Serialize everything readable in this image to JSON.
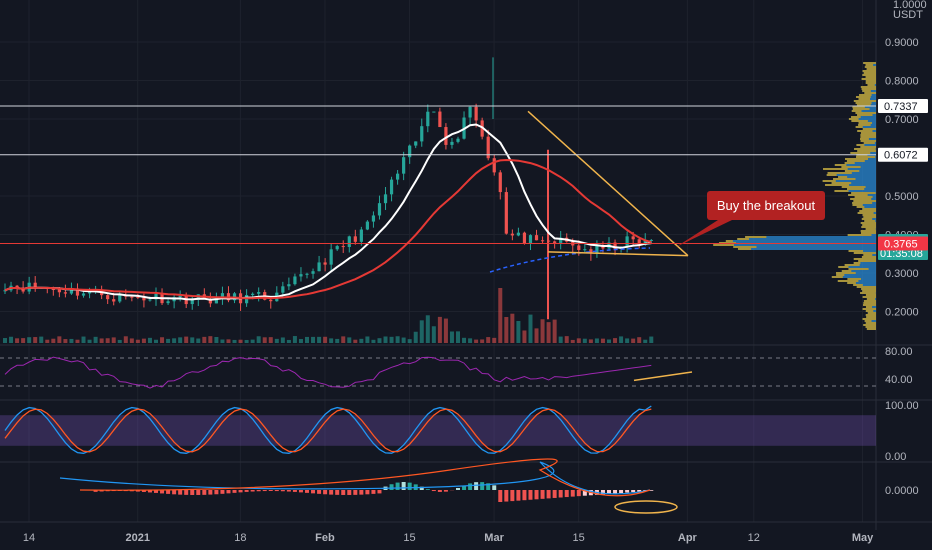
{
  "chart_data": {
    "type": "candlestick",
    "quote": "USDT",
    "price_scale": {
      "ticks": [
        "0.9000",
        "0.8000",
        "0.7000",
        "0.5000",
        "0.4000",
        "0.3000",
        "0.2000"
      ],
      "tick_values": [
        0.9,
        0.8,
        0.7,
        0.5,
        0.4,
        0.3,
        0.2
      ],
      "top_cutoff_label": "1.0000"
    },
    "time_scale": {
      "labels": [
        "14",
        "2021",
        "18",
        "Feb",
        "15",
        "Mar",
        "15",
        "Apr",
        "12",
        "May"
      ],
      "day_offsets": [
        0,
        18,
        35,
        49,
        63,
        77,
        91,
        109,
        120,
        138
      ]
    },
    "price_badges": [
      {
        "label": "0.7337",
        "value": 0.7337,
        "style": "white"
      },
      {
        "label": "0.6072",
        "value": 0.6072,
        "style": "white"
      },
      {
        "label": "0.3857",
        "value": 0.3857,
        "style": "green",
        "countdown": "01:35:08"
      },
      {
        "label": "0.3765",
        "value": 0.3765,
        "style": "red"
      }
    ],
    "horizontal_levels": [
      {
        "value": 0.7337,
        "color": "#d1d4dc"
      },
      {
        "value": 0.6072,
        "color": "#d1d4dc"
      },
      {
        "value": 0.3765,
        "color": "#e53935"
      }
    ],
    "annotation": {
      "text": "Buy the breakout",
      "color": "#b22222"
    },
    "rsi": {
      "ticks": [
        "80.00",
        "40.00"
      ],
      "tick_values": [
        80,
        40
      ],
      "upper": 70,
      "lower": 30
    },
    "stoch_rsi": {
      "ticks": [
        "100.00",
        "0.00"
      ],
      "tick_values": [
        100,
        0
      ],
      "upper": 80,
      "lower": 20
    },
    "macd": {
      "ticks": [
        "0.0000"
      ],
      "tick_values": [
        0
      ]
    },
    "colors": {
      "up": "#26a69a",
      "down": "#ef5350",
      "ma_fast": "#ffffff",
      "ma_slow": "#e53935",
      "trendline": "#f0b44c",
      "profile": "#2a8ad4"
    }
  }
}
